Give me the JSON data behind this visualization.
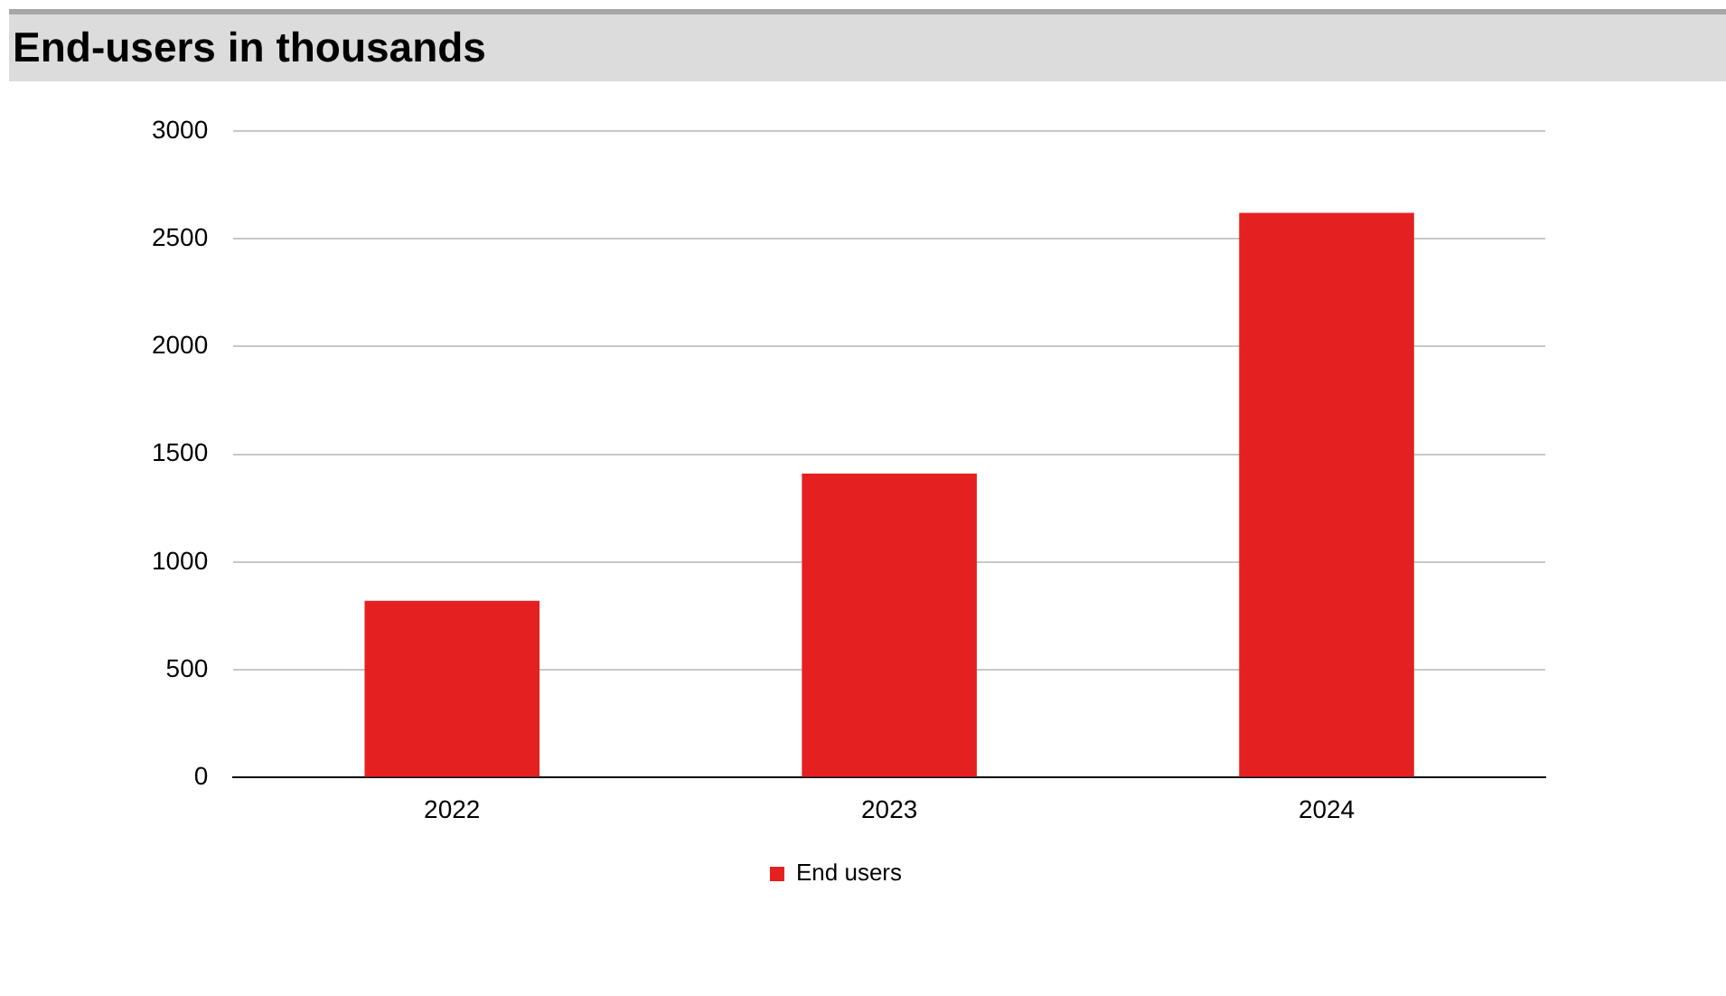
{
  "chart_data": {
    "type": "bar",
    "title": "End-users in thousands",
    "categories": [
      "2022",
      "2023",
      "2024"
    ],
    "series": [
      {
        "name": "End users",
        "color": "#e52020",
        "values": [
          820,
          1410,
          2620
        ]
      }
    ],
    "ylim": [
      0,
      3000
    ],
    "yticks": [
      0,
      500,
      1000,
      1500,
      2000,
      2500,
      3000
    ],
    "grid": "y",
    "legend": "bottom"
  }
}
